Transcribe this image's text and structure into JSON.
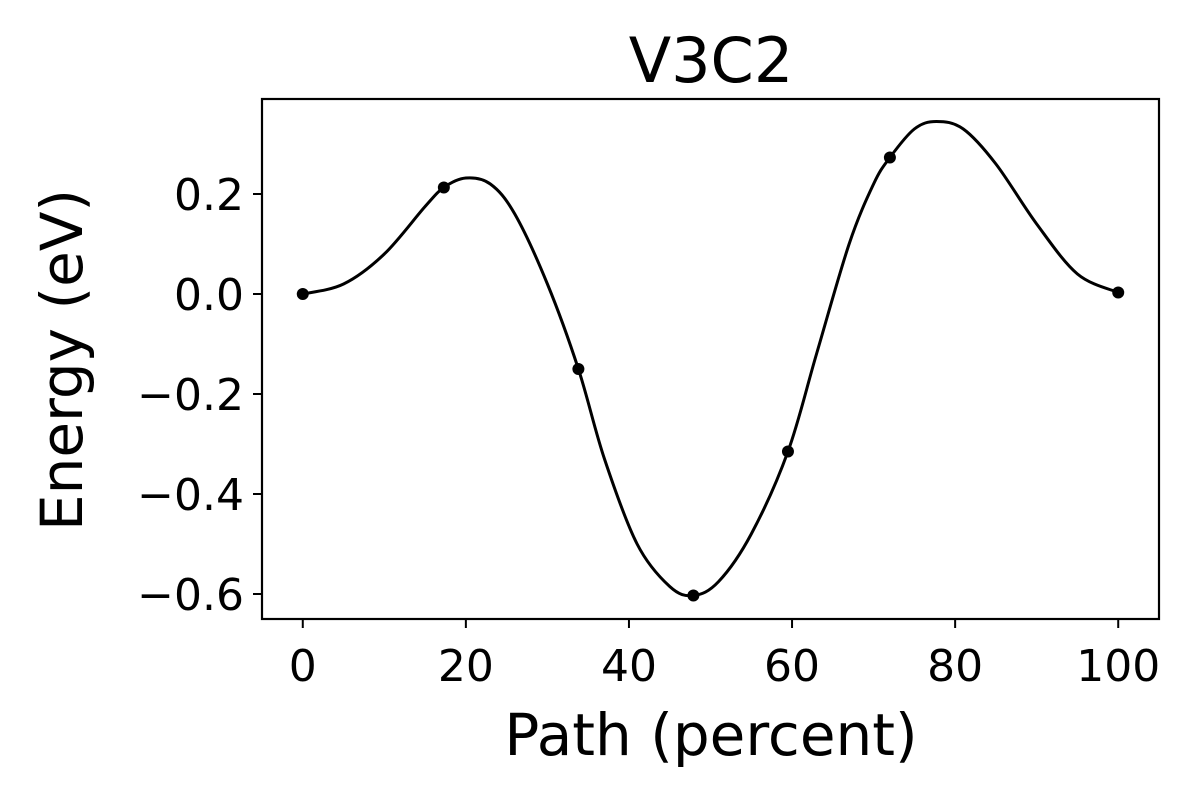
{
  "chart_data": {
    "type": "line",
    "title": "V3C2",
    "xlabel": "Path (percent)",
    "ylabel": "Energy (eV)",
    "xlim": [
      -5,
      105
    ],
    "ylim": [
      -0.65,
      0.39
    ],
    "xticks": [
      0,
      20,
      40,
      60,
      80,
      100
    ],
    "xtick_labels": [
      "0",
      "20",
      "40",
      "60",
      "80",
      "100"
    ],
    "yticks": [
      0.2,
      0.0,
      -0.2,
      -0.4,
      -0.6
    ],
    "ytick_labels": [
      "0.2",
      "0.0",
      "−0.2",
      "−0.4",
      "−0.6"
    ],
    "grid": false,
    "series": [
      {
        "color": "#000000",
        "points": [
          {
            "x": 0,
            "y": 0.0
          },
          {
            "x": 17.3,
            "y": 0.213
          },
          {
            "x": 33.8,
            "y": -0.15
          },
          {
            "x": 47.9,
            "y": -0.603
          },
          {
            "x": 59.5,
            "y": -0.315
          },
          {
            "x": 72.0,
            "y": 0.273
          },
          {
            "x": 100,
            "y": 0.003
          }
        ],
        "curve": [
          {
            "x": 0,
            "y": 0.0
          },
          {
            "x": 5,
            "y": 0.02
          },
          {
            "x": 10,
            "y": 0.08
          },
          {
            "x": 15,
            "y": 0.175
          },
          {
            "x": 17.3,
            "y": 0.213
          },
          {
            "x": 20,
            "y": 0.232
          },
          {
            "x": 23,
            "y": 0.22
          },
          {
            "x": 26,
            "y": 0.16
          },
          {
            "x": 30,
            "y": 0.02
          },
          {
            "x": 33.8,
            "y": -0.15
          },
          {
            "x": 37,
            "y": -0.33
          },
          {
            "x": 41,
            "y": -0.5
          },
          {
            "x": 45,
            "y": -0.585
          },
          {
            "x": 47.9,
            "y": -0.603
          },
          {
            "x": 51,
            "y": -0.575
          },
          {
            "x": 55,
            "y": -0.48
          },
          {
            "x": 59.5,
            "y": -0.315
          },
          {
            "x": 63,
            "y": -0.12
          },
          {
            "x": 67,
            "y": 0.1
          },
          {
            "x": 70,
            "y": 0.22
          },
          {
            "x": 72,
            "y": 0.273
          },
          {
            "x": 75,
            "y": 0.33
          },
          {
            "x": 77.7,
            "y": 0.345
          },
          {
            "x": 81,
            "y": 0.33
          },
          {
            "x": 85,
            "y": 0.26
          },
          {
            "x": 90,
            "y": 0.14
          },
          {
            "x": 95,
            "y": 0.04
          },
          {
            "x": 100,
            "y": 0.003
          }
        ]
      }
    ]
  }
}
